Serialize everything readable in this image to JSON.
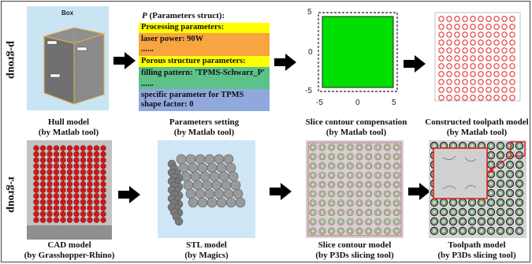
{
  "row_labels": {
    "top": "p-group",
    "bottom": "r-group"
  },
  "hull": {
    "box_label": "Box",
    "caption_line1": "Hull model",
    "caption_line2": "(by Matlab tool)"
  },
  "params": {
    "title_italic": "P",
    "title_rest": " (Parameters struct):",
    "bands": [
      {
        "text": "Processing parameters:",
        "color": "#ffff00"
      },
      {
        "text": "laser power: 90W",
        "color": "#f7a441"
      },
      {
        "text": "......",
        "color": "#f7a441"
      },
      {
        "text": "Porous structure parameters:",
        "color": "#ffff00"
      },
      {
        "text": "filling pattern: 'TPMS-Schwarz_P'",
        "color": "#5cc28a"
      },
      {
        "text": "......",
        "color": "#5cc28a"
      },
      {
        "text": "specific parameter for TPMS",
        "color": "#90a8dc"
      },
      {
        "text": "shape factor: 0",
        "color": "#90a8dc"
      }
    ],
    "caption_line1": "Parameters setting",
    "caption_line2": "(by Matlab tool)"
  },
  "slice_plot": {
    "y_ticks": [
      "5",
      "0",
      "-5"
    ],
    "x_ticks": [
      "-5",
      "0",
      "5"
    ],
    "fill_color": "#00e000",
    "caption_line1": "Slice contour compensation",
    "caption_line2": "(by Matlab tool)"
  },
  "toolpath": {
    "caption_line1": "Constructed toolpath model",
    "caption_line2": "(by Matlab tool)"
  },
  "cad": {
    "caption_line1": "CAD model",
    "caption_line2": "(by Grasshopper-Rhino)"
  },
  "stl": {
    "caption_line1": "STL model",
    "caption_line2": "(by Magics)"
  },
  "slice_model": {
    "caption_line1": "Slice contour model",
    "caption_line2": "(by P3Ds slicing tool)"
  },
  "toolpath_model": {
    "caption_line1": "Toolpath model",
    "caption_line2": "(by P3Ds slicing tool)"
  }
}
